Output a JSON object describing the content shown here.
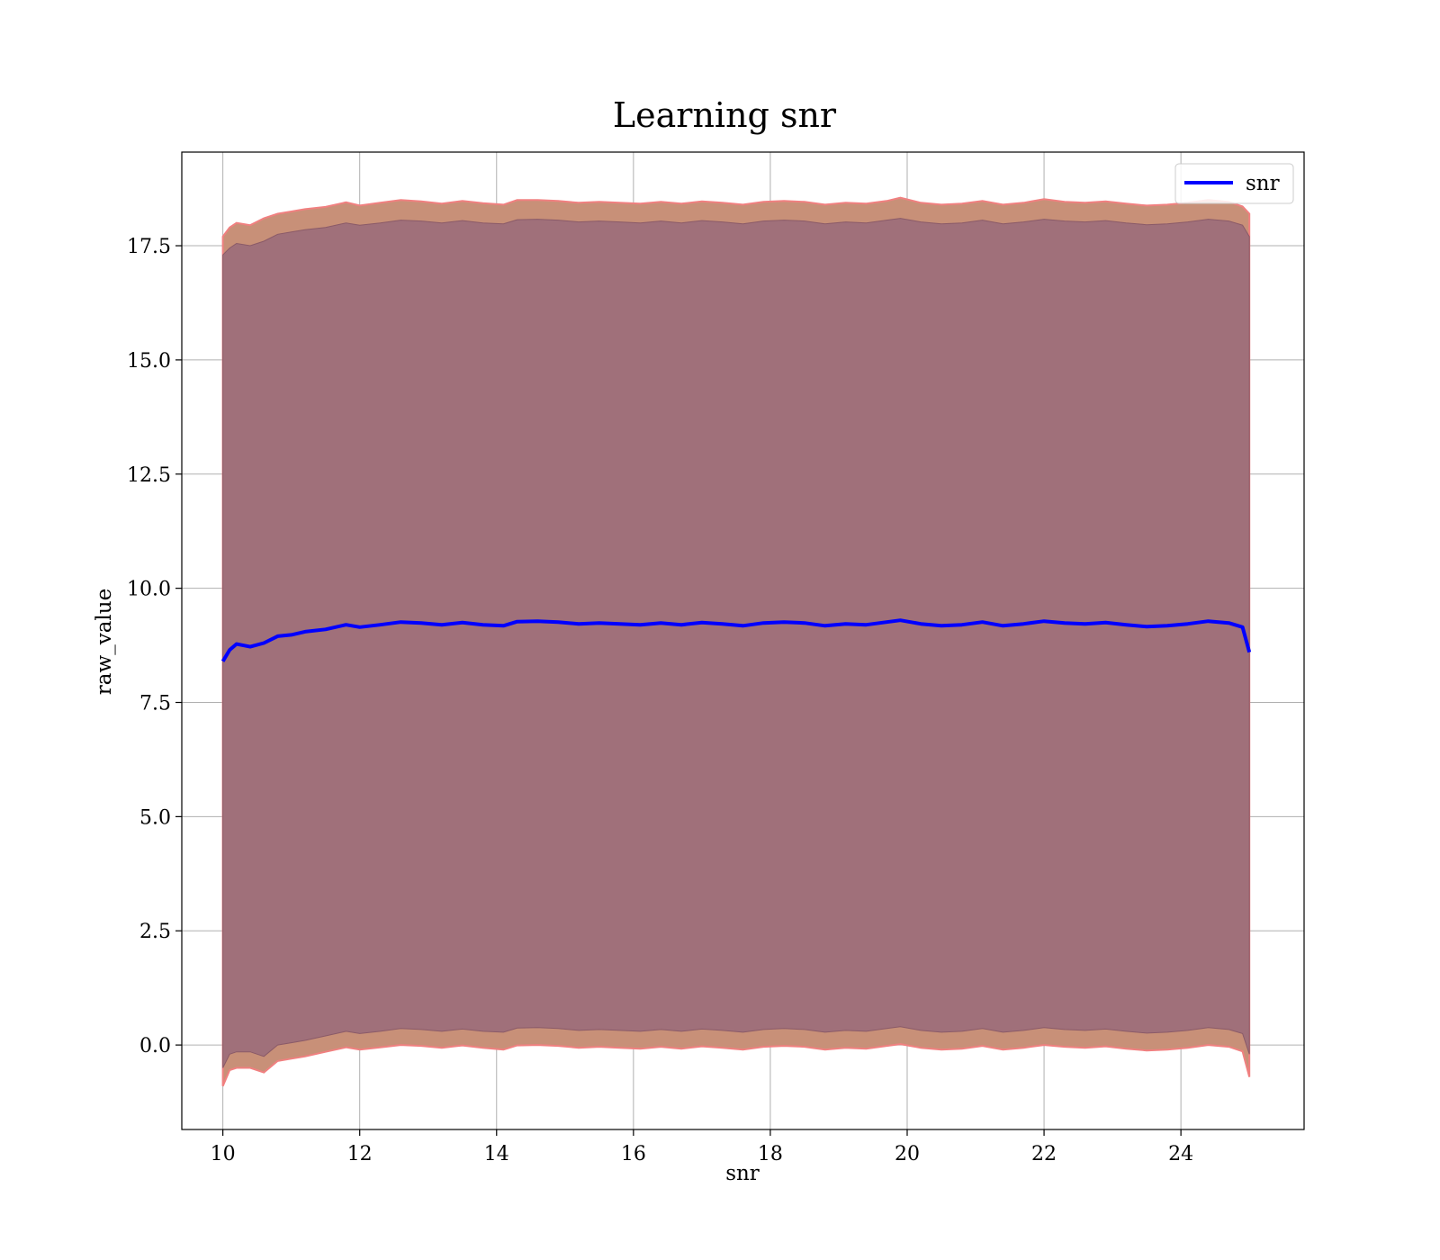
{
  "chart_data": {
    "type": "line",
    "title": "Learning snr",
    "xlabel": "snr",
    "ylabel": "raw_value",
    "xlim": [
      9.4,
      25.8
    ],
    "ylim": [
      -1.85,
      19.55
    ],
    "xticks": [
      10,
      12,
      14,
      16,
      18,
      20,
      22,
      24
    ],
    "xtick_labels": [
      "10",
      "12",
      "14",
      "16",
      "18",
      "20",
      "22",
      "24"
    ],
    "yticks": [
      0.0,
      2.5,
      5.0,
      7.5,
      10.0,
      12.5,
      15.0,
      17.5
    ],
    "ytick_labels": [
      "0.0",
      "2.5",
      "5.0",
      "7.5",
      "10.0",
      "12.5",
      "15.0",
      "17.5"
    ],
    "grid": true,
    "legend": {
      "placement": "top-right",
      "entries": [
        "snr"
      ]
    },
    "colors": {
      "line": "#0000ff",
      "inner_band": "#a0707a",
      "outer_band": "#c89078",
      "outer_edge": "#f08080"
    },
    "series": [
      {
        "name": "snr",
        "x": [
          10.0,
          10.1,
          10.2,
          10.4,
          10.6,
          10.8,
          11.0,
          11.2,
          11.5,
          11.8,
          12.0,
          12.3,
          12.6,
          12.9,
          13.2,
          13.5,
          13.8,
          14.1,
          14.3,
          14.6,
          14.9,
          15.2,
          15.5,
          15.8,
          16.1,
          16.4,
          16.7,
          17.0,
          17.3,
          17.6,
          17.9,
          18.2,
          18.5,
          18.8,
          19.1,
          19.4,
          19.7,
          19.9,
          20.2,
          20.5,
          20.8,
          21.1,
          21.4,
          21.7,
          22.0,
          22.3,
          22.6,
          22.9,
          23.2,
          23.5,
          23.8,
          24.1,
          24.4,
          24.7,
          24.9,
          25.0
        ],
        "y": [
          8.4,
          8.65,
          8.78,
          8.72,
          8.8,
          8.95,
          8.98,
          9.05,
          9.1,
          9.2,
          9.15,
          9.2,
          9.26,
          9.24,
          9.2,
          9.25,
          9.2,
          9.18,
          9.27,
          9.28,
          9.26,
          9.22,
          9.24,
          9.22,
          9.2,
          9.24,
          9.2,
          9.25,
          9.22,
          9.18,
          9.24,
          9.26,
          9.24,
          9.18,
          9.22,
          9.2,
          9.26,
          9.3,
          9.22,
          9.18,
          9.2,
          9.26,
          9.18,
          9.22,
          9.28,
          9.24,
          9.22,
          9.25,
          9.2,
          9.16,
          9.18,
          9.22,
          9.28,
          9.24,
          9.15,
          8.6
        ]
      }
    ],
    "bands": [
      {
        "label": "inner",
        "x": [
          10.0,
          10.1,
          10.2,
          10.4,
          10.6,
          10.8,
          11.0,
          11.2,
          11.5,
          11.8,
          12.0,
          12.3,
          12.6,
          12.9,
          13.2,
          13.5,
          13.8,
          14.1,
          14.3,
          14.6,
          14.9,
          15.2,
          15.5,
          15.8,
          16.1,
          16.4,
          16.7,
          17.0,
          17.3,
          17.6,
          17.9,
          18.2,
          18.5,
          18.8,
          19.1,
          19.4,
          19.7,
          19.9,
          20.2,
          20.5,
          20.8,
          21.1,
          21.4,
          21.7,
          22.0,
          22.3,
          22.6,
          22.9,
          23.2,
          23.5,
          23.8,
          24.1,
          24.4,
          24.7,
          24.9,
          25.0
        ],
        "upper": [
          17.3,
          17.45,
          17.55,
          17.5,
          17.6,
          17.75,
          17.8,
          17.85,
          17.9,
          18.0,
          17.95,
          18.0,
          18.06,
          18.04,
          18.0,
          18.05,
          18.0,
          17.98,
          18.07,
          18.08,
          18.06,
          18.02,
          18.04,
          18.02,
          18.0,
          18.04,
          18.0,
          18.05,
          18.02,
          17.98,
          18.04,
          18.06,
          18.04,
          17.98,
          18.02,
          18.0,
          18.06,
          18.1,
          18.02,
          17.98,
          18.0,
          18.06,
          17.98,
          18.02,
          18.08,
          18.04,
          18.02,
          18.05,
          18.0,
          17.96,
          17.98,
          18.02,
          18.08,
          18.04,
          17.95,
          17.7
        ],
        "lower": [
          -0.5,
          -0.2,
          -0.15,
          -0.15,
          -0.25,
          0.0,
          0.05,
          0.1,
          0.2,
          0.3,
          0.25,
          0.3,
          0.36,
          0.34,
          0.3,
          0.35,
          0.3,
          0.28,
          0.37,
          0.38,
          0.36,
          0.32,
          0.34,
          0.32,
          0.3,
          0.34,
          0.3,
          0.35,
          0.32,
          0.28,
          0.34,
          0.36,
          0.34,
          0.28,
          0.32,
          0.3,
          0.36,
          0.4,
          0.32,
          0.28,
          0.3,
          0.36,
          0.28,
          0.32,
          0.38,
          0.34,
          0.32,
          0.35,
          0.3,
          0.26,
          0.28,
          0.32,
          0.38,
          0.34,
          0.25,
          -0.2
        ]
      },
      {
        "label": "outer",
        "x": [
          10.0,
          10.1,
          10.2,
          10.4,
          10.6,
          10.8,
          11.0,
          11.2,
          11.5,
          11.8,
          12.0,
          12.3,
          12.6,
          12.9,
          13.2,
          13.5,
          13.8,
          14.1,
          14.3,
          14.6,
          14.9,
          15.2,
          15.5,
          15.8,
          16.1,
          16.4,
          16.7,
          17.0,
          17.3,
          17.6,
          17.9,
          18.2,
          18.5,
          18.8,
          19.1,
          19.4,
          19.7,
          19.9,
          20.2,
          20.5,
          20.8,
          21.1,
          21.4,
          21.7,
          22.0,
          22.3,
          22.6,
          22.9,
          23.2,
          23.5,
          23.8,
          24.1,
          24.4,
          24.7,
          24.9,
          25.0
        ],
        "upper": [
          17.7,
          17.9,
          18.0,
          17.95,
          18.1,
          18.2,
          18.25,
          18.3,
          18.35,
          18.45,
          18.38,
          18.44,
          18.5,
          18.47,
          18.42,
          18.48,
          18.43,
          18.4,
          18.5,
          18.5,
          18.48,
          18.44,
          18.46,
          18.44,
          18.42,
          18.46,
          18.42,
          18.47,
          18.44,
          18.4,
          18.46,
          18.48,
          18.46,
          18.4,
          18.44,
          18.42,
          18.48,
          18.55,
          18.44,
          18.4,
          18.42,
          18.48,
          18.4,
          18.44,
          18.52,
          18.46,
          18.44,
          18.47,
          18.42,
          18.38,
          18.4,
          18.44,
          18.5,
          18.46,
          18.36,
          18.2
        ],
        "lower": [
          -0.9,
          -0.55,
          -0.5,
          -0.5,
          -0.6,
          -0.35,
          -0.3,
          -0.25,
          -0.15,
          -0.05,
          -0.1,
          -0.05,
          0.0,
          -0.02,
          -0.06,
          -0.01,
          -0.06,
          -0.1,
          -0.01,
          0.0,
          -0.02,
          -0.06,
          -0.04,
          -0.06,
          -0.08,
          -0.04,
          -0.08,
          -0.03,
          -0.06,
          -0.1,
          -0.04,
          -0.02,
          -0.04,
          -0.1,
          -0.06,
          -0.08,
          -0.02,
          0.02,
          -0.06,
          -0.1,
          -0.08,
          -0.02,
          -0.1,
          -0.06,
          0.0,
          -0.04,
          -0.06,
          -0.03,
          -0.08,
          -0.12,
          -0.1,
          -0.06,
          0.0,
          -0.04,
          -0.14,
          -0.7
        ]
      }
    ]
  }
}
